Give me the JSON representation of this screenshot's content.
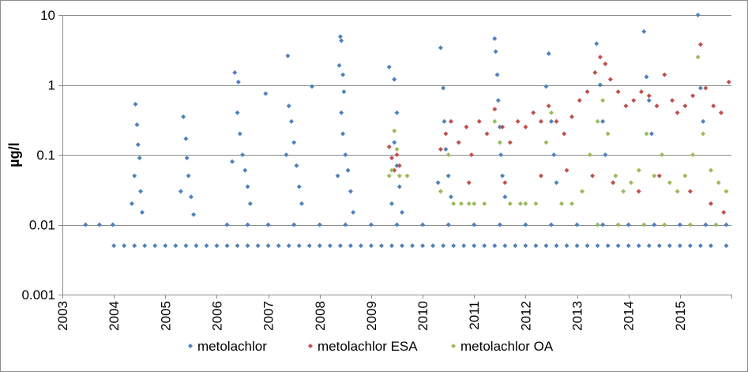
{
  "chart_data": {
    "type": "scatter",
    "title": "",
    "xlabel": "",
    "ylabel": "µg/l",
    "y_scale": "log",
    "ylim": [
      0.001,
      10
    ],
    "xlim": [
      2003,
      2016
    ],
    "y_ticks": [
      {
        "value": 0.001,
        "label": "0.001"
      },
      {
        "value": 0.01,
        "label": "0.01"
      },
      {
        "value": 0.1,
        "label": "0.1"
      },
      {
        "value": 1,
        "label": "1"
      },
      {
        "value": 10,
        "label": "10"
      }
    ],
    "x_ticks": [
      {
        "value": 2003,
        "label": "2003"
      },
      {
        "value": 2004,
        "label": "2004"
      },
      {
        "value": 2005,
        "label": "2005"
      },
      {
        "value": 2006,
        "label": "2006"
      },
      {
        "value": 2007,
        "label": "2007"
      },
      {
        "value": 2008,
        "label": "2008"
      },
      {
        "value": 2009,
        "label": "2009"
      },
      {
        "value": 2010,
        "label": "2010"
      },
      {
        "value": 2011,
        "label": "2011"
      },
      {
        "value": 2012,
        "label": "2012"
      },
      {
        "value": 2013,
        "label": "2013"
      },
      {
        "value": 2014,
        "label": "2014"
      },
      {
        "value": 2015,
        "label": "2015"
      }
    ],
    "grid": "horizontal major",
    "legend_position": "bottom",
    "series": [
      {
        "name": "metolachlor",
        "color": "#4F81BD",
        "points": [
          [
            2003.45,
            0.01
          ],
          [
            2003.72,
            0.01
          ],
          [
            2003.98,
            0.01
          ],
          [
            2004.0,
            0.005
          ],
          [
            2004.2,
            0.005
          ],
          [
            2004.4,
            0.005
          ],
          [
            2004.6,
            0.005
          ],
          [
            2004.8,
            0.005
          ],
          [
            2005.0,
            0.005
          ],
          [
            2005.2,
            0.005
          ],
          [
            2005.4,
            0.005
          ],
          [
            2005.6,
            0.005
          ],
          [
            2005.8,
            0.005
          ],
          [
            2006.0,
            0.005
          ],
          [
            2006.2,
            0.005
          ],
          [
            2006.4,
            0.005
          ],
          [
            2006.6,
            0.005
          ],
          [
            2006.8,
            0.005
          ],
          [
            2007.0,
            0.005
          ],
          [
            2007.2,
            0.005
          ],
          [
            2007.4,
            0.005
          ],
          [
            2007.6,
            0.005
          ],
          [
            2007.8,
            0.005
          ],
          [
            2008.0,
            0.005
          ],
          [
            2008.2,
            0.005
          ],
          [
            2008.4,
            0.005
          ],
          [
            2008.6,
            0.005
          ],
          [
            2008.8,
            0.005
          ],
          [
            2009.0,
            0.005
          ],
          [
            2009.2,
            0.005
          ],
          [
            2009.4,
            0.005
          ],
          [
            2009.6,
            0.005
          ],
          [
            2009.8,
            0.005
          ],
          [
            2010.0,
            0.005
          ],
          [
            2010.2,
            0.005
          ],
          [
            2010.4,
            0.005
          ],
          [
            2010.6,
            0.005
          ],
          [
            2010.8,
            0.005
          ],
          [
            2011.0,
            0.005
          ],
          [
            2011.2,
            0.005
          ],
          [
            2011.4,
            0.005
          ],
          [
            2011.6,
            0.005
          ],
          [
            2011.8,
            0.005
          ],
          [
            2012.0,
            0.005
          ],
          [
            2012.2,
            0.005
          ],
          [
            2012.4,
            0.005
          ],
          [
            2012.6,
            0.005
          ],
          [
            2012.8,
            0.005
          ],
          [
            2013.0,
            0.005
          ],
          [
            2013.2,
            0.005
          ],
          [
            2013.4,
            0.005
          ],
          [
            2013.6,
            0.005
          ],
          [
            2013.8,
            0.005
          ],
          [
            2014.0,
            0.005
          ],
          [
            2014.2,
            0.005
          ],
          [
            2014.4,
            0.005
          ],
          [
            2014.6,
            0.005
          ],
          [
            2014.8,
            0.005
          ],
          [
            2015.0,
            0.005
          ],
          [
            2015.2,
            0.005
          ],
          [
            2015.4,
            0.005
          ],
          [
            2015.6,
            0.005
          ],
          [
            2015.9,
            0.005
          ],
          [
            2006.2,
            0.01
          ],
          [
            2006.6,
            0.01
          ],
          [
            2007.0,
            0.01
          ],
          [
            2007.5,
            0.01
          ],
          [
            2008.0,
            0.01
          ],
          [
            2008.5,
            0.01
          ],
          [
            2009.0,
            0.01
          ],
          [
            2009.5,
            0.01
          ],
          [
            2010.0,
            0.01
          ],
          [
            2010.5,
            0.01
          ],
          [
            2011.0,
            0.01
          ],
          [
            2011.5,
            0.01
          ],
          [
            2012.0,
            0.01
          ],
          [
            2012.5,
            0.01
          ],
          [
            2013.0,
            0.01
          ],
          [
            2013.5,
            0.01
          ],
          [
            2014.0,
            0.01
          ],
          [
            2014.5,
            0.01
          ],
          [
            2015.0,
            0.01
          ],
          [
            2015.5,
            0.01
          ],
          [
            2015.9,
            0.01
          ],
          [
            2004.42,
            0.53
          ],
          [
            2004.45,
            0.27
          ],
          [
            2004.47,
            0.14
          ],
          [
            2004.5,
            0.09
          ],
          [
            2004.4,
            0.05
          ],
          [
            2004.52,
            0.03
          ],
          [
            2004.55,
            0.015
          ],
          [
            2004.35,
            0.02
          ],
          [
            2005.35,
            0.35
          ],
          [
            2005.4,
            0.17
          ],
          [
            2005.42,
            0.09
          ],
          [
            2005.45,
            0.05
          ],
          [
            2005.5,
            0.025
          ],
          [
            2005.55,
            0.014
          ],
          [
            2005.3,
            0.03
          ],
          [
            2006.35,
            1.5
          ],
          [
            2006.42,
            1.1
          ],
          [
            2006.4,
            0.4
          ],
          [
            2006.45,
            0.2
          ],
          [
            2006.5,
            0.1
          ],
          [
            2006.55,
            0.06
          ],
          [
            2006.6,
            0.035
          ],
          [
            2006.65,
            0.02
          ],
          [
            2006.3,
            0.08
          ],
          [
            2006.95,
            0.75
          ],
          [
            2007.38,
            2.6
          ],
          [
            2007.4,
            0.5
          ],
          [
            2007.45,
            0.3
          ],
          [
            2007.5,
            0.15
          ],
          [
            2007.55,
            0.07
          ],
          [
            2007.6,
            0.035
          ],
          [
            2007.35,
            0.1
          ],
          [
            2007.65,
            0.02
          ],
          [
            2007.85,
            0.95
          ],
          [
            2008.4,
            4.9
          ],
          [
            2008.42,
            4.3
          ],
          [
            2008.38,
            1.9
          ],
          [
            2008.45,
            1.4
          ],
          [
            2008.47,
            0.8
          ],
          [
            2008.42,
            0.4
          ],
          [
            2008.45,
            0.2
          ],
          [
            2008.5,
            0.1
          ],
          [
            2008.55,
            0.06
          ],
          [
            2008.6,
            0.03
          ],
          [
            2008.35,
            0.05
          ],
          [
            2008.65,
            0.015
          ],
          [
            2009.35,
            1.8
          ],
          [
            2009.45,
            1.2
          ],
          [
            2009.5,
            0.4
          ],
          [
            2009.45,
            0.15
          ],
          [
            2009.5,
            0.07
          ],
          [
            2009.55,
            0.035
          ],
          [
            2009.4,
            0.02
          ],
          [
            2009.6,
            0.015
          ],
          [
            2010.35,
            3.4
          ],
          [
            2010.4,
            0.9
          ],
          [
            2010.42,
            0.3
          ],
          [
            2010.45,
            0.12
          ],
          [
            2010.5,
            0.05
          ],
          [
            2010.55,
            0.025
          ],
          [
            2010.3,
            0.04
          ],
          [
            2011.4,
            4.6
          ],
          [
            2011.42,
            3.0
          ],
          [
            2011.45,
            1.4
          ],
          [
            2011.47,
            0.6
          ],
          [
            2011.5,
            0.25
          ],
          [
            2011.52,
            0.1
          ],
          [
            2011.55,
            0.05
          ],
          [
            2011.6,
            0.025
          ],
          [
            2012.4,
            0.95
          ],
          [
            2012.45,
            2.8
          ],
          [
            2012.5,
            0.3
          ],
          [
            2012.55,
            0.1
          ],
          [
            2012.6,
            0.04
          ],
          [
            2013.38,
            3.9
          ],
          [
            2013.45,
            1.0
          ],
          [
            2013.5,
            0.3
          ],
          [
            2013.55,
            0.1
          ],
          [
            2014.3,
            5.8
          ],
          [
            2014.35,
            1.3
          ],
          [
            2014.4,
            0.6
          ],
          [
            2014.45,
            0.2
          ],
          [
            2015.35,
            10.0
          ],
          [
            2015.4,
            0.9
          ],
          [
            2015.45,
            0.3
          ]
        ]
      },
      {
        "name": "metolachlor ESA",
        "color": "#C0504D",
        "points": [
          [
            2009.35,
            0.13
          ],
          [
            2009.4,
            0.09
          ],
          [
            2009.45,
            0.06
          ],
          [
            2009.5,
            0.1
          ],
          [
            2009.55,
            0.07
          ],
          [
            2010.35,
            0.12
          ],
          [
            2010.45,
            0.2
          ],
          [
            2010.55,
            0.3
          ],
          [
            2010.7,
            0.15
          ],
          [
            2010.85,
            0.25
          ],
          [
            2010.95,
            0.1
          ],
          [
            2011.1,
            0.3
          ],
          [
            2011.25,
            0.2
          ],
          [
            2011.4,
            0.45
          ],
          [
            2011.55,
            0.25
          ],
          [
            2011.7,
            0.15
          ],
          [
            2011.85,
            0.3
          ],
          [
            2012.0,
            0.25
          ],
          [
            2012.15,
            0.4
          ],
          [
            2012.3,
            0.3
          ],
          [
            2012.45,
            0.5
          ],
          [
            2012.6,
            0.3
          ],
          [
            2012.75,
            0.2
          ],
          [
            2012.9,
            0.35
          ],
          [
            2013.05,
            0.6
          ],
          [
            2013.2,
            0.8
          ],
          [
            2013.35,
            1.5
          ],
          [
            2013.45,
            2.5
          ],
          [
            2013.55,
            2.0
          ],
          [
            2013.65,
            1.2
          ],
          [
            2013.8,
            0.8
          ],
          [
            2013.95,
            0.5
          ],
          [
            2014.1,
            0.6
          ],
          [
            2014.25,
            0.8
          ],
          [
            2014.4,
            0.7
          ],
          [
            2014.55,
            0.5
          ],
          [
            2014.7,
            1.4
          ],
          [
            2014.85,
            0.6
          ],
          [
            2014.95,
            0.4
          ],
          [
            2015.1,
            0.5
          ],
          [
            2015.25,
            0.7
          ],
          [
            2015.4,
            3.8
          ],
          [
            2015.5,
            0.9
          ],
          [
            2015.65,
            0.5
          ],
          [
            2015.8,
            0.4
          ],
          [
            2015.95,
            1.1
          ],
          [
            2013.3,
            0.05
          ],
          [
            2013.7,
            0.04
          ],
          [
            2014.2,
            0.03
          ],
          [
            2014.6,
            0.05
          ],
          [
            2015.2,
            0.03
          ],
          [
            2015.6,
            0.02
          ],
          [
            2015.85,
            0.015
          ],
          [
            2011.6,
            0.04
          ],
          [
            2012.3,
            0.05
          ],
          [
            2012.8,
            0.06
          ],
          [
            2010.9,
            0.04
          ]
        ]
      },
      {
        "name": "metolachlor OA",
        "color": "#9BBB59",
        "points": [
          [
            2009.35,
            0.05
          ],
          [
            2009.4,
            0.06
          ],
          [
            2009.45,
            0.22
          ],
          [
            2009.5,
            0.12
          ],
          [
            2009.55,
            0.05
          ],
          [
            2009.7,
            0.05
          ],
          [
            2010.35,
            0.03
          ],
          [
            2010.5,
            0.1
          ],
          [
            2010.6,
            0.02
          ],
          [
            2010.75,
            0.02
          ],
          [
            2010.9,
            0.02
          ],
          [
            2011.0,
            0.02
          ],
          [
            2011.2,
            0.02
          ],
          [
            2011.4,
            0.3
          ],
          [
            2011.5,
            0.15
          ],
          [
            2011.7,
            0.02
          ],
          [
            2011.9,
            0.02
          ],
          [
            2012.0,
            0.02
          ],
          [
            2012.2,
            0.02
          ],
          [
            2012.4,
            0.15
          ],
          [
            2012.5,
            0.4
          ],
          [
            2012.7,
            0.02
          ],
          [
            2012.9,
            0.02
          ],
          [
            2013.1,
            0.03
          ],
          [
            2013.25,
            0.1
          ],
          [
            2013.4,
            0.3
          ],
          [
            2013.5,
            0.6
          ],
          [
            2013.6,
            0.2
          ],
          [
            2013.75,
            0.05
          ],
          [
            2013.9,
            0.03
          ],
          [
            2014.05,
            0.04
          ],
          [
            2014.2,
            0.06
          ],
          [
            2014.35,
            0.2
          ],
          [
            2014.5,
            0.05
          ],
          [
            2014.65,
            0.1
          ],
          [
            2014.8,
            0.04
          ],
          [
            2014.95,
            0.03
          ],
          [
            2015.1,
            0.05
          ],
          [
            2015.25,
            0.1
          ],
          [
            2015.35,
            2.5
          ],
          [
            2015.45,
            0.2
          ],
          [
            2015.6,
            0.06
          ],
          [
            2015.75,
            0.04
          ],
          [
            2015.9,
            0.03
          ],
          [
            2013.4,
            0.01
          ],
          [
            2013.8,
            0.01
          ],
          [
            2014.3,
            0.01
          ],
          [
            2014.7,
            0.01
          ],
          [
            2015.2,
            0.01
          ],
          [
            2015.7,
            0.01
          ]
        ]
      }
    ]
  }
}
